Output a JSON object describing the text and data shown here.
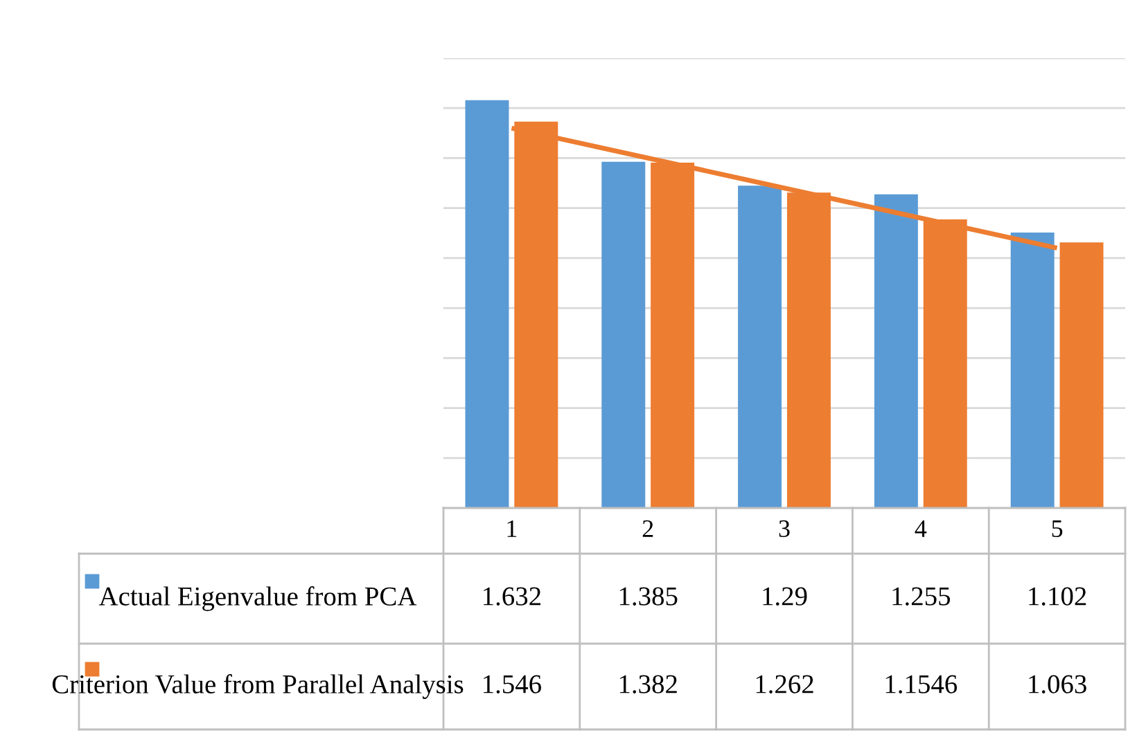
{
  "chart_data": {
    "type": "bar",
    "categories": [
      "1",
      "2",
      "3",
      "4",
      "5"
    ],
    "series": [
      {
        "name": "Actual Eigenvalue from PCA",
        "color": "#5b9bd5",
        "values": [
          1.632,
          1.385,
          1.29,
          1.255,
          1.102
        ],
        "value_labels": [
          "1.632",
          "1.385",
          "1.29",
          "1.255",
          "1.102"
        ]
      },
      {
        "name": "Criterion Value from Parallel Analysis",
        "color": "#ed7d31",
        "values": [
          1.546,
          1.382,
          1.262,
          1.1546,
          1.063
        ],
        "value_labels": [
          "1.546",
          "1.382",
          "1.262",
          "1.1546",
          "1.063"
        ]
      },
      {
        "type": "line",
        "color": "#ed7d31",
        "x": [
          "1",
          "5"
        ],
        "values": [
          1.52,
          1.04
        ]
      }
    ],
    "ylim": [
      0,
      1.8
    ],
    "yticks": [
      {
        "value": 0.2,
        "label": null
      },
      {
        "value": 0.4,
        "label": null
      },
      {
        "value": 0.6,
        "label": null
      },
      {
        "value": 0.8,
        "label": null
      },
      {
        "value": 1.0,
        "label": null
      },
      {
        "value": 1.2,
        "label": null
      },
      {
        "value": 1.4,
        "label": null
      },
      {
        "value": 1.6,
        "label": null
      },
      {
        "value": 1.8,
        "label": null
      }
    ],
    "grid": "y",
    "legend": "bottom",
    "tick_labels": "x"
  }
}
